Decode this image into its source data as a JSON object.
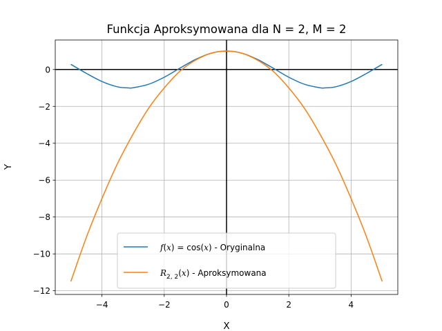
{
  "chart_data": {
    "type": "line",
    "title": "Funkcja Aproksymowana dla N = 2, M = 2",
    "xlabel": "X",
    "ylabel": "Y",
    "xlim": [
      -5.5,
      5.5
    ],
    "ylim": [
      -12.2,
      1.6
    ],
    "x_ticks": [
      -4,
      -2,
      0,
      2,
      4
    ],
    "x_tick_labels": [
      "−4",
      "−2",
      "0",
      "2",
      "4"
    ],
    "y_ticks": [
      0,
      -2,
      -4,
      -6,
      -8,
      -10,
      -12
    ],
    "y_tick_labels": [
      "0",
      "−2",
      "−4",
      "−6",
      "−8",
      "−10",
      "−12"
    ],
    "grid": true,
    "legend_position": "lower center",
    "series": [
      {
        "name": "f(x) = cos(x) - Oryginalna",
        "color": "#1f77b4",
        "x": [
          -5.0,
          -4.5,
          -4.0,
          -3.5,
          -3.14,
          -3.0,
          -2.5,
          -2.0,
          -1.5,
          -1.0,
          -0.5,
          0.0,
          0.5,
          1.0,
          1.5,
          2.0,
          2.5,
          3.0,
          3.14,
          3.5,
          4.0,
          4.5,
          5.0
        ],
        "y": [
          0.28,
          -0.21,
          -0.65,
          -0.94,
          -1.0,
          -0.99,
          -0.8,
          -0.42,
          0.07,
          0.54,
          0.88,
          1.0,
          0.88,
          0.54,
          0.07,
          -0.42,
          -0.8,
          -0.99,
          -1.0,
          -0.94,
          -0.65,
          -0.21,
          0.28
        ]
      },
      {
        "name": "R2,2(x) - Aproksymowana",
        "color": "#ff7f0e",
        "x": [
          -5.0,
          -4.5,
          -4.0,
          -3.5,
          -3.0,
          -2.5,
          -2.0,
          -1.5,
          -1.0,
          -0.5,
          0.0,
          0.5,
          1.0,
          1.5,
          2.0,
          2.5,
          3.0,
          3.5,
          4.0,
          4.5,
          5.0
        ],
        "y": [
          -11.5,
          -9.1,
          -7.0,
          -5.1,
          -3.5,
          -2.1,
          -1.0,
          -0.1,
          0.5,
          0.88,
          1.0,
          0.88,
          0.5,
          -0.1,
          -1.0,
          -2.1,
          -3.5,
          -5.1,
          -7.0,
          -9.1,
          -11.5
        ]
      }
    ]
  }
}
